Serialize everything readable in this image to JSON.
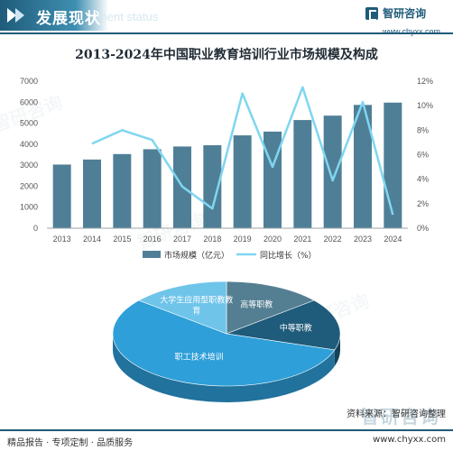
{
  "header": {
    "title": "发展现状",
    "ghost_text": "ment status",
    "brand_name": "智研咨询",
    "brand_url": "www.chyxx.com"
  },
  "colors": {
    "header": "#1f5b7a",
    "bar": "#4f7f97",
    "line": "#7fd6f0",
    "pie": [
      "#547f93",
      "#1f5b7a",
      "#2e9fd8",
      "#6fc4ea"
    ]
  },
  "chart_data": [
    {
      "type": "bar",
      "title": "2013-2024年中国职业教育培训行业市场规模及构成",
      "categories": [
        "2013",
        "2014",
        "2015",
        "2016",
        "2017",
        "2018",
        "2019",
        "2020",
        "2021",
        "2022",
        "2023",
        "2024"
      ],
      "series": [
        {
          "name": "市场规模（亿元）",
          "type": "bar",
          "axis": "left",
          "values": [
            3030,
            3270,
            3530,
            3760,
            3890,
            3950,
            4420,
            4600,
            5150,
            5360,
            5870,
            5980
          ]
        },
        {
          "name": "同比增长（%）",
          "type": "line",
          "axis": "right",
          "values": [
            null,
            6.9,
            8.0,
            7.2,
            3.4,
            1.6,
            11.0,
            5.0,
            11.5,
            3.9,
            10.3,
            1.1
          ]
        }
      ],
      "y_left": {
        "min": 0,
        "max": 7000,
        "ticks": [
          "0",
          "1000",
          "2000",
          "3000",
          "4000",
          "5000",
          "6000",
          "7000"
        ]
      },
      "y_right": {
        "min": 0,
        "max": 12,
        "ticks": [
          "0%",
          "2%",
          "4%",
          "6%",
          "8%",
          "10%",
          "12%"
        ]
      },
      "legend": "bottom",
      "grid": false
    },
    {
      "type": "pie",
      "style": "3d",
      "slices": [
        {
          "label": "高等职教",
          "value": 14
        },
        {
          "label": "中等职教",
          "value": 16
        },
        {
          "label": "职工技术培训",
          "value": 56
        },
        {
          "label": "大学生应用型职教教育",
          "value": 14
        }
      ]
    }
  ],
  "source": "资料来源：智研咨询整理",
  "big_brand": "智研咨询",
  "footer": {
    "left": "精品报告 · 专项定制 · 品质服务",
    "right": "www.chyxx.com"
  }
}
